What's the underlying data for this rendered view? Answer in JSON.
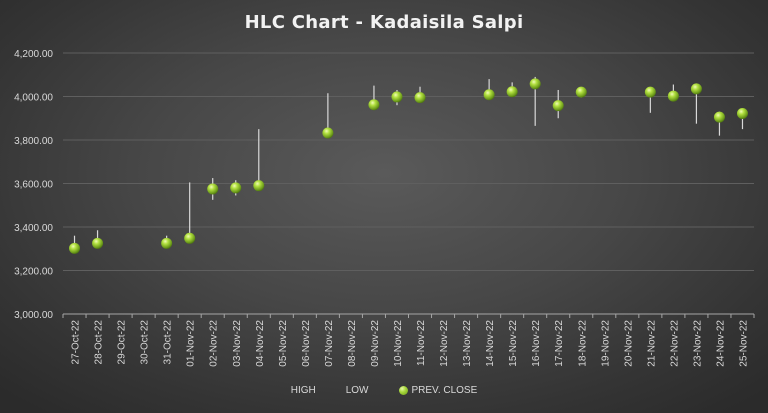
{
  "chart_data": {
    "type": "scatter",
    "subtype": "HLC stock chart",
    "title": "HLC Chart - Kadaisila Salpi",
    "xlabel": "",
    "ylabel": "",
    "ylim": [
      3000,
      4200
    ],
    "yticks": [
      "3,000.00",
      "3,200.00",
      "3,400.00",
      "3,600.00",
      "3,800.00",
      "4,000.00",
      "4,200.00"
    ],
    "grid": true,
    "legend_position": "bottom",
    "legend": [
      "HIGH",
      "LOW",
      "PREV. CLOSE"
    ],
    "categories": [
      "27-Oct-22",
      "28-Oct-22",
      "29-Oct-22",
      "30-Oct-22",
      "31-Oct-22",
      "01-Nov-22",
      "02-Nov-22",
      "03-Nov-22",
      "04-Nov-22",
      "05-Nov-22",
      "06-Nov-22",
      "07-Nov-22",
      "08-Nov-22",
      "09-Nov-22",
      "10-Nov-22",
      "11-Nov-22",
      "12-Nov-22",
      "13-Nov-22",
      "14-Nov-22",
      "15-Nov-22",
      "16-Nov-22",
      "17-Nov-22",
      "18-Nov-22",
      "19-Nov-22",
      "20-Nov-22",
      "21-Nov-22",
      "22-Nov-22",
      "23-Nov-22",
      "24-Nov-22",
      "25-Nov-22"
    ],
    "series": [
      {
        "name": "HIGH",
        "values": [
          3360,
          3385,
          null,
          null,
          3360,
          3605,
          3625,
          3615,
          3850,
          null,
          null,
          4015,
          null,
          4050,
          4030,
          4045,
          null,
          null,
          4080,
          4065,
          4090,
          4030,
          4025,
          null,
          null,
          4025,
          4055,
          4060,
          3930,
          3940
        ]
      },
      {
        "name": "LOW",
        "values": [
          3300,
          3320,
          null,
          null,
          3315,
          3340,
          3525,
          3545,
          3590,
          null,
          null,
          3830,
          null,
          3955,
          3960,
          3990,
          null,
          null,
          4000,
          4015,
          3865,
          3900,
          3995,
          null,
          null,
          3925,
          3995,
          3875,
          3820,
          3850
        ]
      },
      {
        "name": "PREV. CLOSE",
        "values": [
          3302,
          3325,
          null,
          null,
          3325,
          3348,
          3575,
          3580,
          3590,
          null,
          null,
          3832,
          null,
          3962,
          3998,
          3995,
          null,
          null,
          4008,
          4022,
          4058,
          3958,
          4020,
          null,
          null,
          4020,
          4002,
          4035,
          3905,
          3922
        ]
      }
    ],
    "colors": {
      "marker": "#9acd32",
      "hl_line": "#d9d9d9",
      "grid": "#5f5f5f",
      "text": "#d9d9d9"
    }
  }
}
